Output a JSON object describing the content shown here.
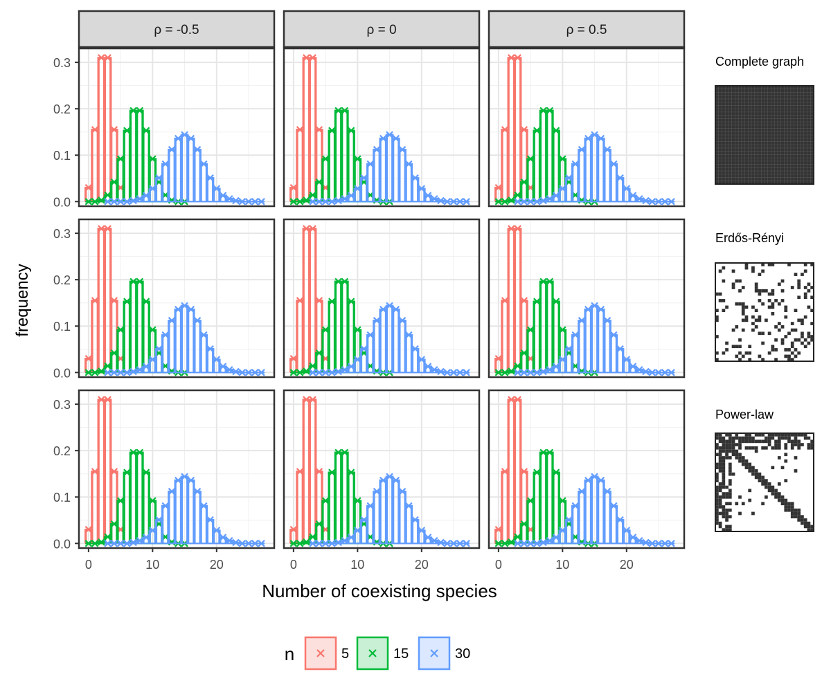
{
  "chart_data": {
    "type": "bar",
    "facet_cols": [
      {
        "label": "ρ = -0.5"
      },
      {
        "label": "ρ = 0"
      },
      {
        "label": "ρ = 0.5"
      }
    ],
    "facet_rows": [
      {
        "label": "Complete graph",
        "matrix_icon": "complete-graph-adjacency-matrix"
      },
      {
        "label": "Erdős-Rényi",
        "matrix_icon": "erdos-renyi-adjacency-matrix"
      },
      {
        "label": "Power-law",
        "matrix_icon": "power-law-adjacency-matrix"
      }
    ],
    "xlabel": "Number of coexisting species",
    "ylabel": "frequency",
    "xlim": [
      -1.5,
      29
    ],
    "ylim": [
      -0.01,
      0.33
    ],
    "xticks": [
      0,
      10,
      20
    ],
    "xtick_labels": [
      "0",
      "10",
      "20"
    ],
    "yticks": [
      0,
      0.1,
      0.2,
      0.3
    ],
    "ytick_labels": [
      "0.0",
      "0.1",
      "0.2",
      "0.3"
    ],
    "grid": true,
    "legend": {
      "title": "n",
      "position": "bottom",
      "entries": [
        {
          "label": "5",
          "color": "#F8766D",
          "fill": "#FCE0DD"
        },
        {
          "label": "15",
          "color": "#00BA38",
          "fill": "#C9EFD4"
        },
        {
          "label": "30",
          "color": "#619CFF",
          "fill": "#DCE8FF"
        }
      ]
    },
    "series": [
      {
        "name": "5",
        "color": "#F8766D",
        "x": [
          0,
          1,
          2,
          3,
          4,
          5
        ],
        "y": [
          0.03,
          0.155,
          0.31,
          0.31,
          0.155,
          0.03
        ]
      },
      {
        "name": "15",
        "color": "#00BA38",
        "x": [
          0,
          1,
          2,
          3,
          4,
          5,
          6,
          7,
          8,
          9,
          10,
          11,
          12,
          13,
          14,
          15
        ],
        "y": [
          0.0,
          0.0,
          0.003,
          0.014,
          0.042,
          0.092,
          0.153,
          0.196,
          0.196,
          0.153,
          0.092,
          0.042,
          0.014,
          0.003,
          0.0,
          0.0
        ]
      },
      {
        "name": "30",
        "color": "#619CFF",
        "x": [
          3,
          4,
          5,
          6,
          7,
          8,
          9,
          10,
          11,
          12,
          13,
          14,
          15,
          16,
          17,
          18,
          19,
          20,
          21,
          22,
          23,
          24,
          25,
          26,
          27
        ],
        "y": [
          0.0,
          0.0,
          0.0,
          0.0,
          0.002,
          0.006,
          0.013,
          0.028,
          0.051,
          0.081,
          0.112,
          0.136,
          0.144,
          0.136,
          0.112,
          0.081,
          0.051,
          0.028,
          0.013,
          0.006,
          0.002,
          0.0,
          0.0,
          0.0,
          0.0
        ]
      }
    ]
  }
}
